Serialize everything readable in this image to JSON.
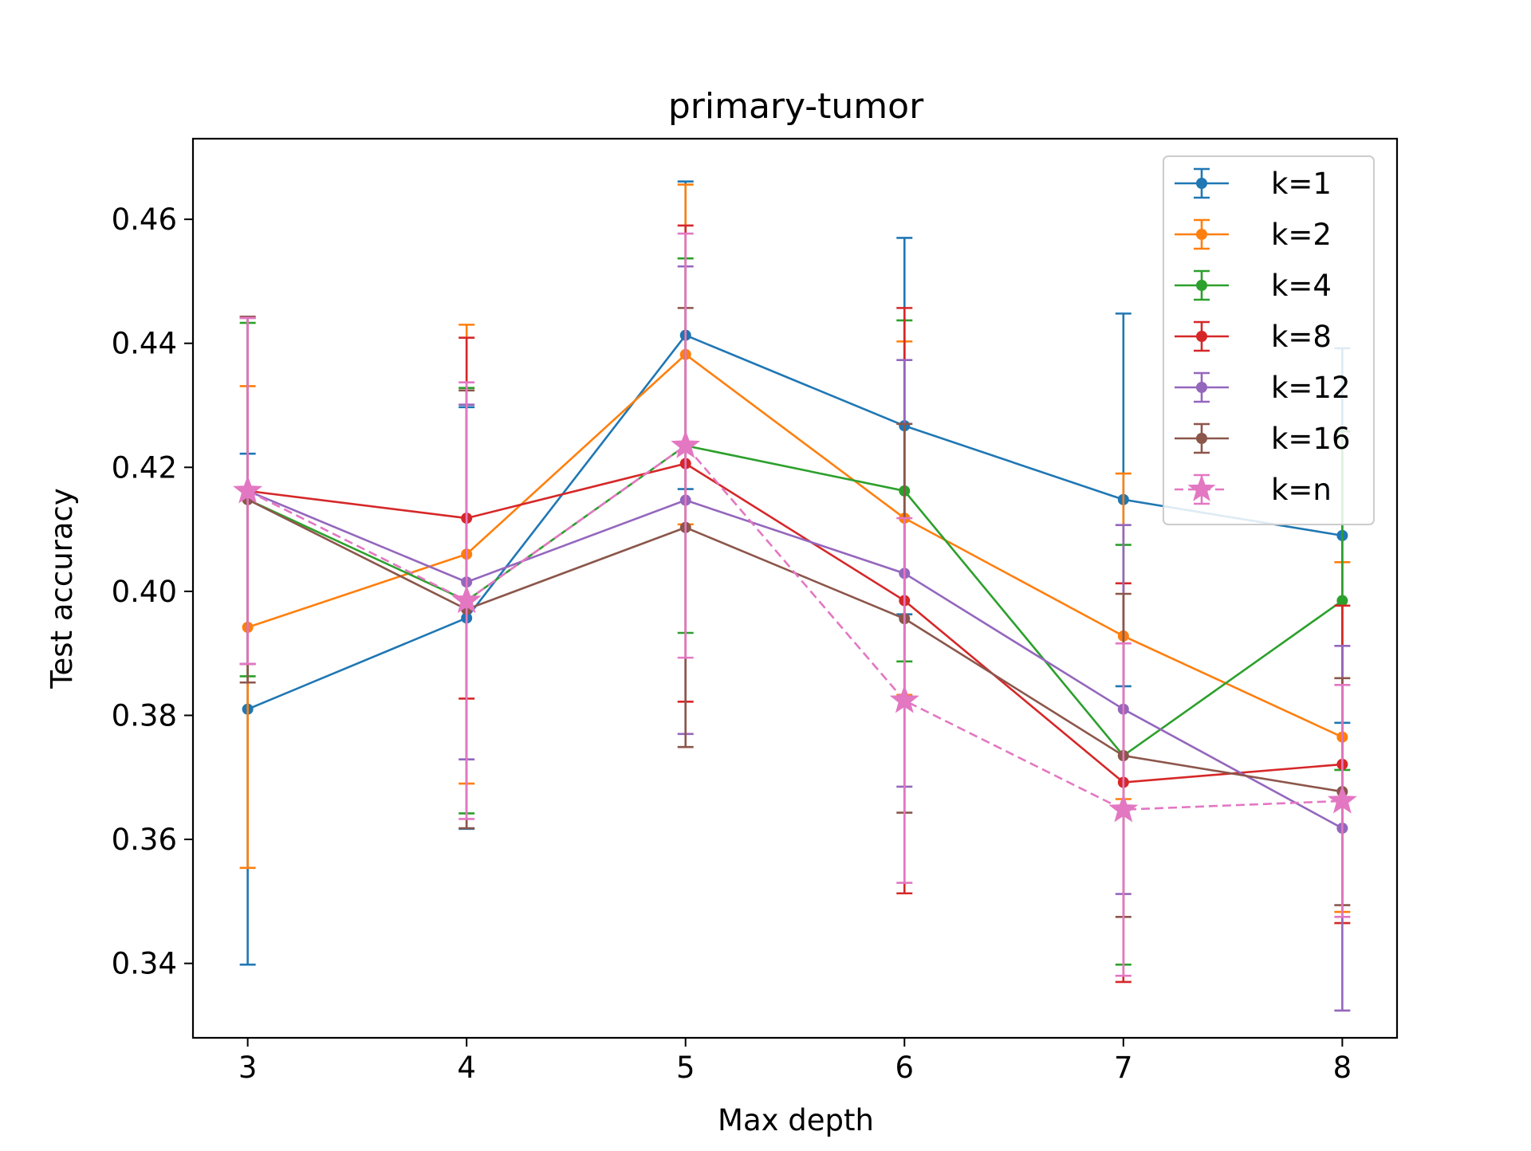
{
  "chart_data": {
    "type": "line",
    "title": "primary-tumor",
    "xlabel": "Max depth",
    "ylabel": "Test accuracy",
    "x": [
      3,
      4,
      5,
      6,
      7,
      8
    ],
    "xlim": [
      2.75,
      8.25
    ],
    "ylim": [
      0.328,
      0.473
    ],
    "xticks": [
      3,
      4,
      5,
      6,
      7,
      8
    ],
    "xtick_labels": [
      "3",
      "4",
      "5",
      "6",
      "7",
      "8"
    ],
    "yticks": [
      0.34,
      0.36,
      0.38,
      0.4,
      0.42,
      0.44,
      0.46
    ],
    "ytick_labels": [
      "0.34",
      "0.36",
      "0.38",
      "0.40",
      "0.42",
      "0.44",
      "0.46"
    ],
    "grid": false,
    "legend_position": "top-right",
    "series": [
      {
        "name": "k=1",
        "color": "#1f77b4",
        "marker": "circle",
        "linestyle": "solid",
        "values": [
          0.381,
          0.3957,
          0.4413,
          0.4267,
          0.4148,
          0.409
        ],
        "err_low": [
          0.3398,
          0.3617,
          0.4165,
          0.3963,
          0.3847,
          0.3788
        ],
        "err_high": [
          0.4222,
          0.4297,
          0.4661,
          0.457,
          0.4448,
          0.4392
        ]
      },
      {
        "name": "k=2",
        "color": "#ff7f0e",
        "marker": "circle",
        "linestyle": "solid",
        "values": [
          0.3942,
          0.406,
          0.4382,
          0.4118,
          0.3928,
          0.3765
        ],
        "err_low": [
          0.3554,
          0.369,
          0.4108,
          0.3833,
          0.3665,
          0.3483
        ],
        "err_high": [
          0.4331,
          0.443,
          0.4656,
          0.4403,
          0.419,
          0.4047
        ]
      },
      {
        "name": "k=4",
        "color": "#2ca02c",
        "marker": "circle",
        "linestyle": "solid",
        "values": [
          0.4148,
          0.3985,
          0.4235,
          0.4162,
          0.3735,
          0.3985
        ],
        "err_low": [
          0.3863,
          0.3642,
          0.3933,
          0.3887,
          0.3398,
          0.3712
        ],
        "err_high": [
          0.4433,
          0.4328,
          0.4537,
          0.4437,
          0.4075,
          0.4258
        ]
      },
      {
        "name": "k=8",
        "color": "#d62728",
        "marker": "circle",
        "linestyle": "solid",
        "values": [
          0.4162,
          0.4118,
          0.4206,
          0.3985,
          0.3692,
          0.3721
        ],
        "err_low": [
          0.3883,
          0.3827,
          0.3822,
          0.3513,
          0.337,
          0.3465
        ],
        "err_high": [
          0.4441,
          0.4409,
          0.459,
          0.4457,
          0.4013,
          0.3977
        ]
      },
      {
        "name": "k=12",
        "color": "#9467bd",
        "marker": "circle",
        "linestyle": "solid",
        "values": [
          0.4162,
          0.4015,
          0.4147,
          0.4029,
          0.381,
          0.3618
        ],
        "err_low": [
          0.3883,
          0.3729,
          0.377,
          0.3685,
          0.3512,
          0.3324
        ],
        "err_high": [
          0.4441,
          0.4301,
          0.4524,
          0.4373,
          0.4107,
          0.3912
        ]
      },
      {
        "name": "k=16",
        "color": "#8c564b",
        "marker": "circle",
        "linestyle": "solid",
        "values": [
          0.4148,
          0.3971,
          0.4103,
          0.3956,
          0.3735,
          0.3677
        ],
        "err_low": [
          0.3853,
          0.3618,
          0.3749,
          0.3643,
          0.3475,
          0.3494
        ],
        "err_high": [
          0.4443,
          0.4324,
          0.4457,
          0.427,
          0.3996,
          0.386
        ]
      },
      {
        "name": "k=n",
        "color": "#e377c2",
        "marker": "star",
        "linestyle": "dashed",
        "values": [
          0.4162,
          0.3985,
          0.4235,
          0.3824,
          0.3648,
          0.3662
        ],
        "err_low": [
          0.3883,
          0.3633,
          0.3893,
          0.353,
          0.338,
          0.3475
        ],
        "err_high": [
          0.4441,
          0.4337,
          0.4577,
          0.4118,
          0.3916,
          0.3849
        ]
      }
    ]
  }
}
